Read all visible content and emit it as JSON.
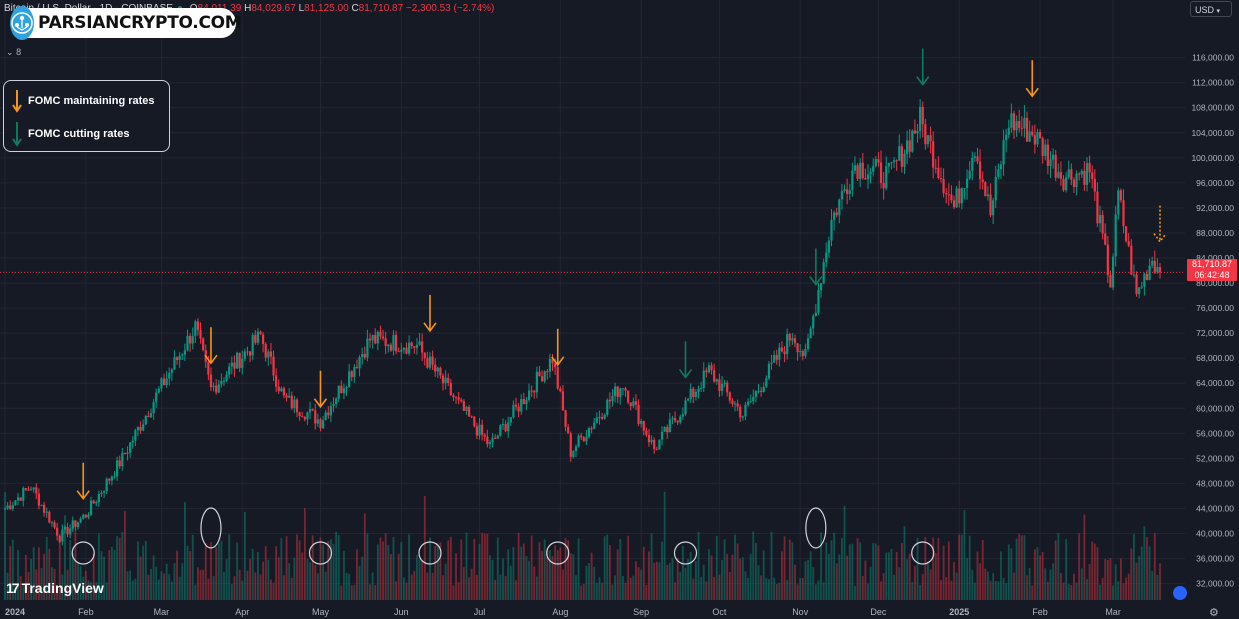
{
  "header": {
    "symbol": "Bitcoin / U.S. Dollar · 1D · COINBASE",
    "open_label": "O",
    "open": "84,011.39",
    "high_label": "H",
    "high": "84,029.67",
    "low_label": "L",
    "low": "81,125.00",
    "close_label": "C",
    "close": "81,710.87",
    "change": "−2,300.53 (−2.74%)",
    "indicator_count": "8",
    "currency": "USD"
  },
  "brand": {
    "name": "PARSIANCRYPTO.COM"
  },
  "legend": {
    "items": [
      {
        "label": "FOMC maintaining rates",
        "color": "#f7941d"
      },
      {
        "label": "FOMC cutting rates",
        "color": "#0e7a5c"
      }
    ]
  },
  "footer": {
    "logo_text": "TradingView"
  },
  "last_price": {
    "value": "81,710.87",
    "countdown": "06:42:48"
  },
  "colors": {
    "up": "#089981",
    "down": "#f23645",
    "background": "#161a25",
    "grid": "#232632",
    "last_price_line": "#f23645"
  },
  "icons": {
    "settings": "gear-icon",
    "flag": "us-flag-icon",
    "chevron": "chevron-down-icon"
  },
  "chart_data": {
    "type": "candlestick",
    "title": "Bitcoin / U.S. Dollar · 1D · COINBASE",
    "x_ticks": [
      "2024",
      "Feb",
      "Mar",
      "Apr",
      "May",
      "Jun",
      "Jul",
      "Aug",
      "Sep",
      "Oct",
      "Nov",
      "Dec",
      "2025",
      "Feb",
      "Mar"
    ],
    "y_ticks": [
      32000,
      36000,
      40000,
      44000,
      48000,
      52000,
      56000,
      60000,
      64000,
      68000,
      72000,
      76000,
      80000,
      84000,
      88000,
      92000,
      96000,
      100000,
      104000,
      108000,
      112000,
      116000
    ],
    "ylim": [
      30500,
      118500
    ],
    "grid": true,
    "close_path": [
      {
        "x": "2024-01-01",
        "y": 44000
      },
      {
        "x": "2024-01-11",
        "y": 47500
      },
      {
        "x": "2024-01-22",
        "y": 39500
      },
      {
        "x": "2024-02-01",
        "y": 43000
      },
      {
        "x": "2024-02-15",
        "y": 52000
      },
      {
        "x": "2024-02-28",
        "y": 62000
      },
      {
        "x": "2024-03-14",
        "y": 73000
      },
      {
        "x": "2024-03-20",
        "y": 63000
      },
      {
        "x": "2024-04-08",
        "y": 71500
      },
      {
        "x": "2024-04-17",
        "y": 61500
      },
      {
        "x": "2024-05-01",
        "y": 58000
      },
      {
        "x": "2024-05-20",
        "y": 71000
      },
      {
        "x": "2024-06-07",
        "y": 70000
      },
      {
        "x": "2024-06-24",
        "y": 60000
      },
      {
        "x": "2024-07-05",
        "y": 54000
      },
      {
        "x": "2024-07-29",
        "y": 68000
      },
      {
        "x": "2024-08-05",
        "y": 53000
      },
      {
        "x": "2024-08-25",
        "y": 64000
      },
      {
        "x": "2024-09-06",
        "y": 53500
      },
      {
        "x": "2024-09-27",
        "y": 66000
      },
      {
        "x": "2024-10-10",
        "y": 59000
      },
      {
        "x": "2024-10-29",
        "y": 72000
      },
      {
        "x": "2024-11-03",
        "y": 68000
      },
      {
        "x": "2024-11-13",
        "y": 90000
      },
      {
        "x": "2024-11-22",
        "y": 99000
      },
      {
        "x": "2024-12-05",
        "y": 97000
      },
      {
        "x": "2024-12-17",
        "y": 106000
      },
      {
        "x": "2024-12-30",
        "y": 92000
      },
      {
        "x": "2025-01-07",
        "y": 102000
      },
      {
        "x": "2025-01-13",
        "y": 91000
      },
      {
        "x": "2025-01-20",
        "y": 106000
      },
      {
        "x": "2025-01-29",
        "y": 104000
      },
      {
        "x": "2025-02-10",
        "y": 97000
      },
      {
        "x": "2025-02-20",
        "y": 98000
      },
      {
        "x": "2025-02-28",
        "y": 80000
      },
      {
        "x": "2025-03-03",
        "y": 94000
      },
      {
        "x": "2025-03-10",
        "y": 78000
      },
      {
        "x": "2025-03-16",
        "y": 84000
      },
      {
        "x": "2025-03-19",
        "y": 81710.87
      }
    ],
    "last_price": 81710.87,
    "annotations": [
      {
        "type": "fomc-hold",
        "x": "2024-01-31"
      },
      {
        "type": "fomc-hold",
        "x": "2024-03-20"
      },
      {
        "type": "fomc-hold",
        "x": "2024-05-01"
      },
      {
        "type": "fomc-hold",
        "x": "2024-06-12"
      },
      {
        "type": "fomc-hold",
        "x": "2024-07-31"
      },
      {
        "type": "fomc-cut",
        "x": "2024-09-18"
      },
      {
        "type": "fomc-cut",
        "x": "2024-11-07"
      },
      {
        "type": "fomc-cut",
        "x": "2024-12-18"
      },
      {
        "type": "fomc-hold",
        "x": "2025-01-29"
      },
      {
        "type": "fomc-hold-projected",
        "x": "2025-03-19"
      }
    ],
    "volume_circles": [
      "2024-01-31",
      "2024-03-20",
      "2024-05-01",
      "2024-06-12",
      "2024-07-31",
      "2024-09-18",
      "2024-11-07",
      "2024-12-18"
    ]
  }
}
